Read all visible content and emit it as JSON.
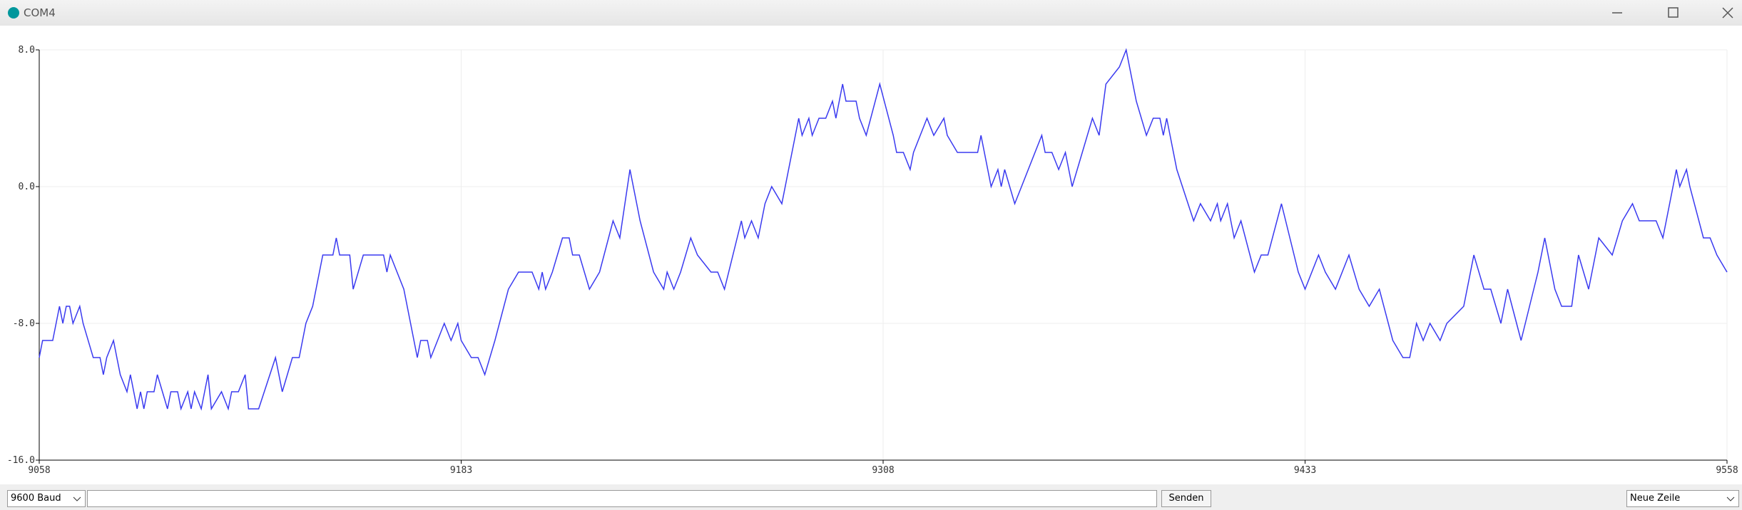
{
  "window": {
    "title": "COM4"
  },
  "chart_data": {
    "type": "line",
    "color": "#3a3af0",
    "grid": true,
    "x": [
      9058,
      9059,
      9062,
      9064,
      9065,
      9066,
      9067,
      9068,
      9070,
      9071,
      9074,
      9076,
      9077,
      9078,
      9080,
      9081,
      9082,
      9084,
      9085,
      9087,
      9088,
      9089,
      9090,
      9092,
      9093,
      9096,
      9097,
      9099,
      9100,
      9102,
      9103,
      9104,
      9106,
      9108,
      9109,
      9112,
      9114,
      9115,
      9117,
      9119,
      9120,
      9123,
      9128,
      9130,
      9133,
      9135,
      9137,
      9139,
      9142,
      9145,
      9146,
      9147,
      9150,
      9151,
      9154,
      9155,
      9160,
      9161,
      9162,
      9166,
      9170,
      9171,
      9173,
      9174,
      9176,
      9178,
      9180,
      9182,
      9183,
      9186,
      9188,
      9190,
      9193,
      9197,
      9200,
      9204,
      9206,
      9207,
      9208,
      9210,
      9213,
      9215,
      9216,
      9218,
      9221,
      9224,
      9228,
      9230,
      9233,
      9236,
      9240,
      9243,
      9244,
      9246,
      9248,
      9251,
      9253,
      9257,
      9259,
      9261,
      9266,
      9267,
      9269,
      9271,
      9273,
      9275,
      9278,
      9283,
      9284,
      9286,
      9287,
      9289,
      9291,
      9293,
      9294,
      9296,
      9297,
      9300,
      9301,
      9303,
      9307,
      9311,
      9312,
      9314,
      9316,
      9317,
      9321,
      9323,
      9326,
      9327,
      9330,
      9336,
      9337,
      9340,
      9342,
      9343,
      9344,
      9347,
      9349,
      9353,
      9355,
      9356,
      9358,
      9360,
      9362,
      9364,
      9367,
      9370,
      9372,
      9374,
      9378,
      9380,
      9383,
      9386,
      9388,
      9390,
      9391,
      9392,
      9395,
      9400,
      9402,
      9405,
      9407,
      9408,
      9410,
      9412,
      9414,
      9418,
      9420,
      9422,
      9426,
      9431,
      9433,
      9437,
      9439,
      9442,
      9446,
      9449,
      9452,
      9455,
      9459,
      9462,
      9464,
      9466,
      9468,
      9470,
      9473,
      9475,
      9480,
      9483,
      9486,
      9488,
      9491,
      9493,
      9497,
      9502,
      9504,
      9507,
      9509,
      9512,
      9514,
      9517,
      9520,
      9524,
      9527,
      9530,
      9532,
      9537,
      9539,
      9543,
      9544,
      9546,
      9547,
      9551,
      9553,
      9555,
      9558
    ],
    "values": [
      -10,
      -9,
      -9,
      -7,
      -8,
      -7,
      -7,
      -8,
      -7,
      -8,
      -10,
      -10,
      -11,
      -10,
      -9,
      -10,
      -11,
      -12,
      -11,
      -13,
      -12,
      -13,
      -12,
      -12,
      -11,
      -13,
      -12,
      -12,
      -13,
      -12,
      -13,
      -12,
      -13,
      -11,
      -13,
      -12,
      -13,
      -12,
      -12,
      -11,
      -13,
      -13,
      -10,
      -12,
      -10,
      -10,
      -8,
      -7,
      -4,
      -4,
      -3,
      -4,
      -4,
      -6,
      -4,
      -4,
      -4,
      -5,
      -4,
      -6,
      -10,
      -9,
      -9,
      -10,
      -9,
      -8,
      -9,
      -8,
      -9,
      -10,
      -10,
      -11,
      -9,
      -6,
      -5,
      -5,
      -6,
      -5,
      -6,
      -5,
      -3,
      -3,
      -4,
      -4,
      -6,
      -5,
      -2,
      -3,
      1,
      -2,
      -5,
      -6,
      -5,
      -6,
      -5,
      -3,
      -4,
      -5,
      -5,
      -6,
      -2,
      -3,
      -2,
      -3,
      -1,
      0,
      -1,
      4,
      3,
      4,
      3,
      4,
      4,
      5,
      4,
      6,
      5,
      5,
      4,
      3,
      6,
      3,
      2,
      2,
      1,
      2,
      4,
      3,
      4,
      3,
      2,
      2,
      3,
      0,
      1,
      0,
      1,
      -1,
      0,
      2,
      3,
      2,
      2,
      1,
      2,
      0,
      2,
      4,
      3,
      6,
      7,
      8,
      5,
      3,
      4,
      4,
      3,
      4,
      1,
      -2,
      -1,
      -2,
      -1,
      -2,
      -1,
      -3,
      -2,
      -5,
      -4,
      -4,
      -1,
      -5,
      -6,
      -4,
      -5,
      -6,
      -4,
      -6,
      -7,
      -6,
      -9,
      -10,
      -10,
      -8,
      -9,
      -8,
      -9,
      -8,
      -7,
      -4,
      -6,
      -6,
      -8,
      -6,
      -9,
      -5,
      -3,
      -6,
      -7,
      -7,
      -4,
      -6,
      -3,
      -4,
      -2,
      -1,
      -2,
      -2,
      -3,
      1,
      0,
      1,
      0,
      -3,
      -3,
      -4,
      -5
    ],
    "xlim": [
      9058,
      9558
    ],
    "xticks": [
      9058,
      9183,
      9308,
      9433,
      9558
    ],
    "ylim": [
      -16,
      8
    ],
    "yticks": [
      {
        "value": 8,
        "label": "8.0"
      },
      {
        "value": 0,
        "label": "0.0"
      },
      {
        "value": -8,
        "label": "-8.0"
      },
      {
        "value": -16,
        "label": "-16.0"
      }
    ]
  },
  "controls": {
    "baud": "9600 Baud",
    "send": "Senden",
    "line_ending": "Neue Zeile"
  }
}
